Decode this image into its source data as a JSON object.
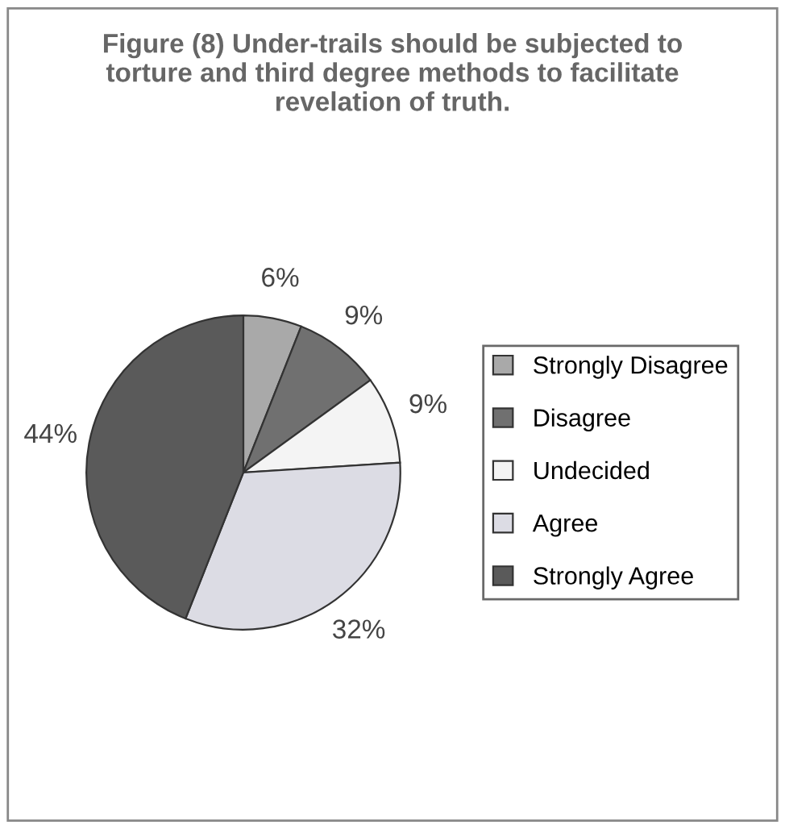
{
  "chart_data": {
    "type": "pie",
    "title": "Figure (8) Under-trails should be subjected to torture and third degree methods to facilitate revelation of truth.",
    "categories": [
      "Strongly Disagree",
      "Disagree",
      "Undecided",
      "Agree",
      "Strongly Agree"
    ],
    "values": [
      6,
      9,
      9,
      32,
      44
    ],
    "value_labels": [
      "6%",
      "9%",
      "9%",
      "32%",
      "44%"
    ],
    "colors": [
      "#a9a9a9",
      "#707070",
      "#f4f4f4",
      "#dcdce4",
      "#5a5a5a"
    ],
    "legend": "right"
  }
}
